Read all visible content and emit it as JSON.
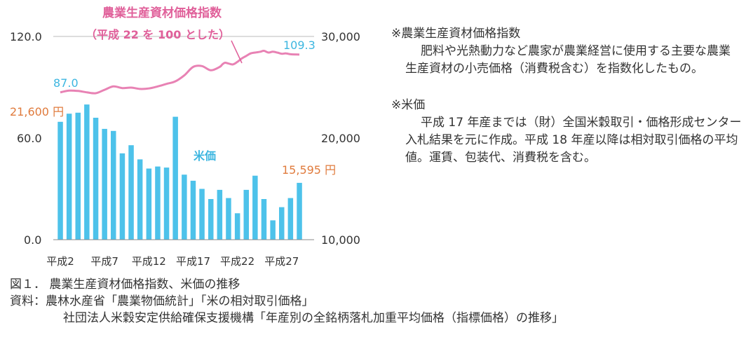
{
  "chart_data": {
    "type": "bar+line",
    "title": "農業生産資材価格指数",
    "subtitle": "（平成 22 を 100 とした）",
    "series_label_bar": "米価",
    "categories": [
      "平成2",
      "平成3",
      "平成4",
      "平成5",
      "平成6",
      "平成7",
      "平成8",
      "平成9",
      "平成10",
      "平成11",
      "平成12",
      "平成13",
      "平成14",
      "平成15",
      "平成16",
      "平成17",
      "平成18",
      "平成19",
      "平成20",
      "平成21",
      "平成22",
      "平成23",
      "平成24",
      "平成25",
      "平成26",
      "平成27",
      "平成28",
      "平成29"
    ],
    "x_tick_labels": [
      "平成2",
      "平成7",
      "平成12",
      "平成17",
      "平成22",
      "平成27"
    ],
    "left_axis": {
      "ticks": [
        "0.0",
        "60.0",
        "120.0"
      ],
      "range": [
        0,
        120
      ]
    },
    "right_axis": {
      "ticks": [
        "10,000",
        "20,000",
        "30,000"
      ],
      "range": [
        10000,
        30000
      ]
    },
    "bar_color": "#4dc2ea",
    "line_color": "#e882b4",
    "accent_orange": "#e07b3d",
    "rice_price_yen": [
      21600,
      22400,
      22500,
      23300,
      22000,
      20900,
      20700,
      18500,
      19300,
      17900,
      17000,
      17200,
      17100,
      22100,
      16400,
      15800,
      15000,
      14000,
      14900,
      14100,
      12600,
      14900,
      16300,
      14000,
      11900,
      13200,
      14100,
      15595
    ],
    "index_weekly_x": [
      0,
      1,
      2,
      3,
      4,
      5,
      6,
      7,
      8,
      9,
      10,
      11,
      12,
      13,
      14,
      15,
      16,
      17,
      18,
      18.3,
      18.6,
      19,
      19.5,
      20,
      20.5,
      21,
      21.5,
      22,
      22.6,
      23,
      23.5,
      24,
      24.5,
      25,
      25.5,
      26,
      27
    ],
    "index_values": [
      87.0,
      88.0,
      87.8,
      87.0,
      86.5,
      88.5,
      90.5,
      89.5,
      89.8,
      89.0,
      89.3,
      90.5,
      92.0,
      93.5,
      97.0,
      102.0,
      102.5,
      100.0,
      102.0,
      103.5,
      104.5,
      104.0,
      103.5,
      105.0,
      107.0,
      108.5,
      110.0,
      110.5,
      111.0,
      111.5,
      110.5,
      111.0,
      110.5,
      109.8,
      110.0,
      109.5,
      109.3
    ],
    "labels": {
      "index_start": "87.0",
      "index_end": "109.3",
      "rice_start": "21,600 円",
      "rice_end": "15,595 円"
    }
  },
  "notes": {
    "note1_title": "※農業生産資材価格指数",
    "note1_body": "肥料や光熱動力など農家が農業経営に使用する主要な農業生産資材の小売価格（消費税含む）を指数化したもの。",
    "note2_title": "※米価",
    "note2_body": "平成 17 年産までは（財）全国米穀取引・価格形成センター入札結果を元に作成。平成 18 年産以降は相対取引価格の平均値。運賃、包装代、消費税を含む。"
  },
  "caption": {
    "figure": "図１．  農業生産資材価格指数、米価の推移",
    "source1": "資料：農林水産省「農業物価統計」「米の相対取引価格」",
    "source2": "社団法人米穀安定供給確保支援機構「年産別の全銘柄落札加重平均価格（指標価格）の推移」"
  }
}
